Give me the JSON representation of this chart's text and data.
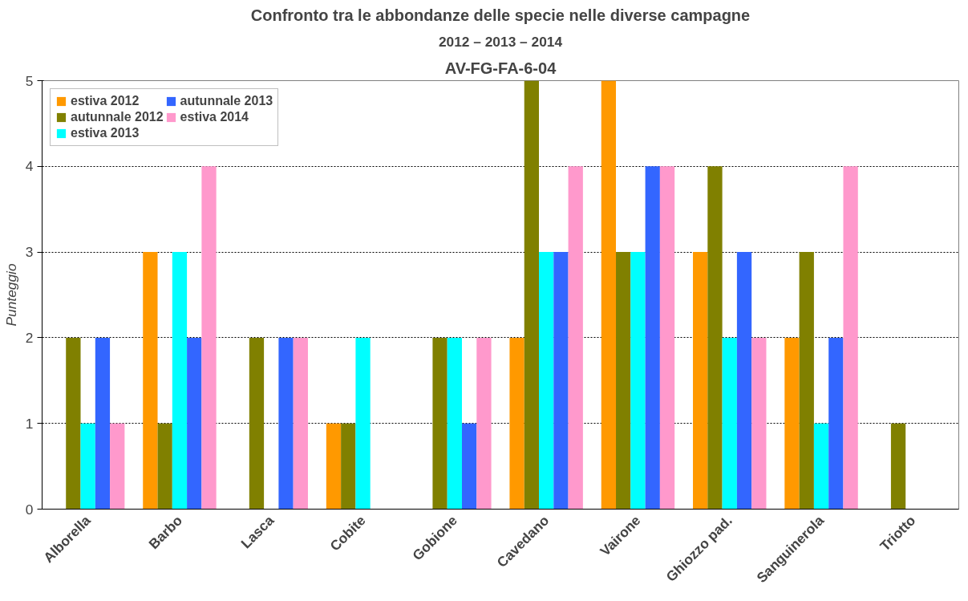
{
  "chart_data": {
    "type": "bar",
    "title": "AV-FG-FA-6-04",
    "subtitle": "Confronto tra le abbondanze delle specie nelle diverse campagne",
    "ylabel": "Punteggio",
    "annotations": [
      "2012 – 2013 – 2014"
    ],
    "categories": [
      "Alborella",
      "Barbo",
      "Lasca",
      "Cobite",
      "Gobione",
      "Cavedano",
      "Vairone",
      "Ghiozzo pad.",
      "Sanguinerola",
      "Triotto"
    ],
    "series": [
      {
        "name": "estiva 2012",
        "color": "#ff9900",
        "values": [
          0,
          3,
          0,
          1,
          0,
          2,
          5,
          3,
          2,
          0
        ]
      },
      {
        "name": "autunnale 2012",
        "color": "#808000",
        "values": [
          2,
          1,
          2,
          1,
          2,
          5,
          3,
          4,
          3,
          1
        ]
      },
      {
        "name": "estiva 2013",
        "color": "#00ffff",
        "values": [
          1,
          3,
          0,
          2,
          2,
          3,
          3,
          2,
          1,
          0
        ]
      },
      {
        "name": "autunnale 2013",
        "color": "#3366ff",
        "values": [
          2,
          2,
          2,
          0,
          1,
          3,
          4,
          3,
          2,
          0
        ]
      },
      {
        "name": "estiva 2014",
        "color": "#ff99cc",
        "values": [
          1,
          4,
          2,
          0,
          2,
          4,
          4,
          2,
          4,
          0
        ]
      }
    ],
    "ylim": [
      0,
      5
    ],
    "yticks": [
      0,
      1,
      2,
      3,
      4,
      5
    ],
    "grid": "y",
    "legend": "top left"
  }
}
